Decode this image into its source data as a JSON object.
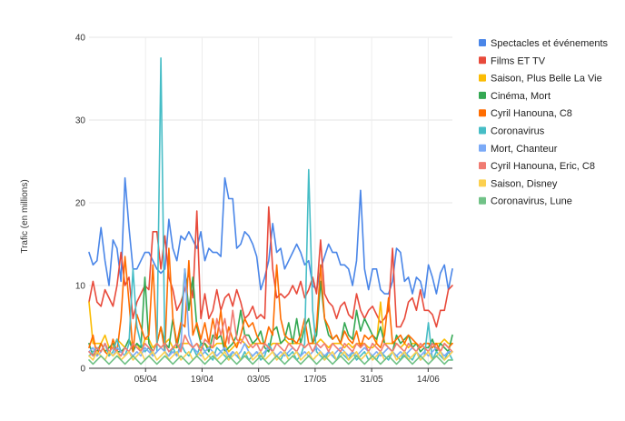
{
  "chart_data": {
    "type": "line",
    "title": "",
    "xlabel": "",
    "ylabel": "Trafic (en millions)",
    "ylim": [
      0,
      40
    ],
    "y_ticks": [
      0,
      10,
      20,
      30,
      40
    ],
    "x_start": "2020-03-22",
    "x_end": "2020-06-20",
    "x_ticks": [
      {
        "date": "2020-04-05",
        "label": "05/04"
      },
      {
        "date": "2020-04-19",
        "label": "19/04"
      },
      {
        "date": "2020-05-03",
        "label": "03/05"
      },
      {
        "date": "2020-05-17",
        "label": "17/05"
      },
      {
        "date": "2020-05-31",
        "label": "31/05"
      },
      {
        "date": "2020-06-14",
        "label": "14/06"
      }
    ],
    "grid": "horizontal",
    "legend": "right",
    "series": [
      {
        "name": "Spectacles et événements",
        "color": "#4a86e8",
        "values": [
          14,
          12.5,
          13,
          17,
          13,
          10,
          15.5,
          14.5,
          10.5,
          23,
          17,
          12,
          12,
          13,
          14,
          14,
          13,
          12,
          11.5,
          12,
          18,
          14.5,
          13,
          16,
          15.5,
          16.5,
          15.5,
          14.5,
          16.5,
          13,
          14.5,
          14,
          14,
          13.5,
          23,
          20.5,
          20.5,
          14.5,
          15,
          16.5,
          16,
          15,
          13.5,
          9.5,
          11,
          13,
          17.5,
          14,
          14.5,
          12,
          13,
          14,
          15,
          14,
          12.5,
          13,
          10,
          9.5,
          12,
          13.5,
          15,
          14,
          14,
          12.5,
          12.5,
          12,
          10,
          13,
          21.5,
          12,
          9.5,
          12,
          12,
          9.5,
          9,
          9,
          10.5,
          14.5,
          14,
          10.5,
          11,
          9,
          11,
          10.5,
          8.5,
          12.5,
          11,
          9,
          11.5,
          12.5,
          9.5,
          12
        ]
      },
      {
        "name": "Films ET TV",
        "color": "#e84a3b",
        "values": [
          8,
          10.5,
          8,
          7.5,
          9.5,
          8.5,
          7.5,
          10,
          14,
          10,
          11,
          6,
          8,
          9,
          10,
          9.5,
          16.5,
          16.5,
          12,
          16,
          11,
          9.5,
          7,
          8,
          9.5,
          11.5,
          8.5,
          19,
          6,
          9,
          6,
          7,
          9.5,
          7,
          8.5,
          9,
          7.5,
          9.5,
          8,
          6,
          6.5,
          7.5,
          6,
          6.5,
          6,
          19.5,
          12,
          8.5,
          9,
          8.5,
          9,
          10,
          9,
          10.5,
          8.5,
          9.5,
          11,
          9,
          15.5,
          9,
          8,
          7.5,
          6,
          7.5,
          8,
          6.5,
          6,
          9,
          7,
          6,
          7,
          7.5,
          6.5,
          5.5,
          6,
          7,
          14.5,
          5,
          5,
          6,
          8,
          8.5,
          7,
          9.5,
          7,
          7,
          6.5,
          5,
          7,
          7,
          9.5,
          10
        ]
      },
      {
        "name": "Saison, Plus Belle La Vie",
        "color": "#fbbc04",
        "values": [
          8,
          3,
          3,
          3,
          4,
          2.5,
          2.5,
          3.5,
          3,
          2.5,
          3.5,
          2.5,
          3,
          2,
          3.5,
          3.5,
          2.5,
          3,
          2.5,
          3,
          3.5,
          2.5,
          2.5,
          3,
          3,
          3,
          2.5,
          3,
          2.5,
          3,
          2.5,
          2.5,
          3,
          3,
          3,
          2,
          2.5,
          3,
          3.5,
          3,
          2.5,
          3,
          3,
          3,
          3,
          2.5,
          3,
          3,
          3,
          3.5,
          3,
          3,
          3,
          3,
          2.5,
          3,
          3,
          3,
          3.5,
          3,
          2.5,
          3,
          3,
          3,
          2.5,
          3,
          2.5,
          3,
          3,
          3,
          2.5,
          2.5,
          3,
          8,
          3,
          3,
          3,
          3,
          2.5,
          3,
          2.5,
          3,
          3,
          2.5,
          3,
          3,
          3,
          3,
          3,
          3.5,
          3,
          3
        ]
      },
      {
        "name": "Cinéma, Mort",
        "color": "#34a853",
        "values": [
          3,
          1.5,
          2,
          3,
          2,
          2.5,
          3,
          2,
          2,
          2.5,
          3.5,
          2,
          3,
          2.5,
          11,
          3,
          2,
          3,
          5,
          3,
          2.5,
          6,
          2.5,
          5,
          12,
          7,
          11,
          5,
          3,
          3,
          2,
          4,
          3.5,
          4,
          2,
          2.5,
          3,
          4,
          7,
          4,
          4,
          3,
          3.5,
          4.5,
          2.5,
          2,
          4.5,
          5,
          3,
          3.5,
          5.5,
          3,
          6,
          3,
          5,
          6,
          3,
          4,
          10.5,
          6,
          4,
          3.5,
          4,
          3,
          5.5,
          4,
          3.5,
          7,
          4.5,
          6,
          5,
          4,
          3.5,
          5,
          3,
          2.5,
          2,
          4,
          3,
          3.5,
          4,
          2.5,
          3,
          2,
          2.5,
          2.5,
          3.5,
          2,
          3,
          2.5,
          2,
          4
        ]
      },
      {
        "name": "Cyril Hanouna, C8",
        "color": "#ff6d01",
        "values": [
          2.5,
          4,
          1.5,
          3,
          2,
          1.5,
          3.5,
          2,
          6,
          13.5,
          8,
          2,
          6.5,
          5,
          3.5,
          4,
          12.5,
          3,
          5,
          2,
          14.5,
          6,
          3,
          5.5,
          5,
          13,
          4,
          5.5,
          3.5,
          5.5,
          3,
          6,
          3.5,
          7,
          2.5,
          5,
          3.5,
          2.5,
          4,
          6,
          5,
          5.5,
          4,
          3,
          3,
          5,
          4,
          12.5,
          6,
          4,
          3.5,
          3.5,
          3,
          4,
          6,
          3,
          3,
          5,
          12.5,
          6,
          5,
          3.5,
          4,
          3,
          4.5,
          3.5,
          3,
          4.5,
          2.5,
          4,
          3.5,
          4,
          3,
          2.5,
          4,
          8.5,
          3,
          3.5,
          4,
          3,
          4,
          3.5,
          3,
          2.5,
          3,
          3,
          2.5,
          3,
          2,
          3,
          2.5,
          3
        ]
      },
      {
        "name": "Coronavirus",
        "color": "#46bdc6",
        "values": [
          1.5,
          2,
          2.5,
          2,
          3,
          1.5,
          2,
          3.5,
          2,
          1.5,
          3,
          12,
          5,
          3,
          2,
          2.5,
          1.5,
          2,
          37.5,
          2,
          1.5,
          2.5,
          1.5,
          3,
          2,
          1.5,
          2.5,
          1.5,
          3,
          2,
          1.5,
          1,
          2.5,
          2,
          1.5,
          1,
          2,
          1.5,
          1,
          2,
          1,
          1.5,
          2,
          1,
          1.5,
          3,
          2,
          1.5,
          1,
          2,
          1.5,
          2,
          1,
          1.5,
          3,
          24,
          7,
          2,
          1.5,
          1,
          2,
          1.5,
          1,
          2,
          1.5,
          1,
          2,
          1,
          1.5,
          2,
          1,
          1.5,
          1,
          2,
          1.5,
          1,
          2,
          1.5,
          1,
          2,
          1.5,
          1,
          2,
          1,
          1.5,
          5.5,
          1,
          2,
          1.5,
          1,
          2,
          1
        ]
      },
      {
        "name": "Mort, Chanteur",
        "color": "#7baaf7",
        "values": [
          2,
          2.5,
          1.5,
          2,
          3,
          2,
          1.5,
          2.5,
          2,
          1.5,
          2,
          1.5,
          2,
          1.5,
          2.5,
          2,
          1.5,
          2,
          2.5,
          2,
          1.5,
          2,
          1.5,
          2.5,
          12,
          4,
          2.5,
          2,
          1.5,
          2,
          2.5,
          2,
          1.5,
          2,
          2.5,
          1.5,
          2,
          1.5,
          2,
          3,
          2,
          1.5,
          2,
          1.5,
          2,
          2.5,
          2,
          1.5,
          2,
          1.5,
          2,
          2.5,
          2,
          1.5,
          2,
          1.5,
          2,
          2.5,
          2,
          1.5,
          2,
          1.5,
          2,
          2.5,
          2,
          1.5,
          2,
          1.5,
          2,
          2.5,
          2,
          1.5,
          2,
          1.5,
          2,
          2.5,
          2,
          1.5,
          2,
          1.5,
          2,
          2.5,
          2,
          1.5,
          2,
          1.5,
          2,
          2.5,
          2,
          1.5,
          2,
          2
        ]
      },
      {
        "name": "Cyril Hanouna, Eric, C8",
        "color": "#f07b72",
        "values": [
          2,
          1.5,
          2.5,
          2,
          3,
          2,
          2.5,
          2,
          1.5,
          2.5,
          2,
          3,
          2.5,
          2,
          3,
          2.5,
          2,
          3,
          2.5,
          3,
          2,
          2.5,
          3,
          2,
          4,
          3,
          2.5,
          3,
          2,
          3.5,
          3,
          2.5,
          6,
          4,
          6,
          3,
          7,
          3.5,
          3,
          4,
          3,
          2.5,
          3,
          2,
          3,
          2.5,
          2,
          3,
          2.5,
          2,
          3,
          2.5,
          2,
          3,
          2.5,
          3,
          2,
          3,
          2.5,
          3,
          2,
          3,
          2.5,
          2,
          3,
          2.5,
          2,
          3,
          2.5,
          3,
          2,
          3,
          2.5,
          2,
          3,
          2.5,
          2,
          3,
          2.5,
          2,
          3,
          2.5,
          2,
          3,
          2.5,
          2,
          3,
          2.5,
          2,
          3,
          2.5,
          2
        ]
      },
      {
        "name": "Saison, Disney",
        "color": "#fcd04f",
        "values": [
          1.5,
          1,
          2,
          1.5,
          1,
          2,
          1.5,
          2,
          1,
          1.5,
          2,
          1,
          1.5,
          2,
          1,
          1.5,
          2,
          1,
          1.5,
          2,
          1,
          1.5,
          2,
          1,
          1.5,
          2,
          1,
          1.5,
          2,
          1,
          1.5,
          2,
          1,
          1.5,
          2,
          1,
          1.5,
          2,
          1,
          1.5,
          2,
          1,
          1.5,
          2,
          1,
          1.5,
          2,
          1,
          1.5,
          2,
          1,
          1.5,
          2,
          1,
          1.5,
          2,
          1,
          1.5,
          2,
          1,
          1.5,
          2,
          1,
          1.5,
          2,
          1,
          1.5,
          2,
          1,
          1.5,
          2,
          1,
          1.5,
          2,
          1,
          1.5,
          2,
          1,
          1.5,
          2,
          1,
          1.5,
          2,
          1,
          1.5,
          2,
          1,
          1.5,
          2,
          1,
          1.5,
          2
        ]
      },
      {
        "name": "Coronavirus, Lune",
        "color": "#71c287",
        "values": [
          1,
          0.5,
          1,
          1.5,
          1,
          0.5,
          1,
          1.5,
          1,
          0.5,
          1,
          1.5,
          1,
          0.5,
          1,
          1.5,
          1,
          0.5,
          1,
          1.5,
          1,
          0.5,
          1,
          1.5,
          1,
          0.5,
          1,
          1.5,
          1,
          0.5,
          1,
          1.5,
          1,
          0.5,
          1,
          1.5,
          1,
          0.5,
          1,
          1.5,
          1,
          0.5,
          1,
          1.5,
          1,
          0.5,
          1,
          1.5,
          1,
          0.5,
          1,
          1.5,
          1,
          0.5,
          1,
          1.5,
          1,
          0.5,
          1,
          1.5,
          1,
          0.5,
          1,
          1.5,
          1,
          0.5,
          1,
          1.5,
          1,
          0.5,
          1,
          1.5,
          1,
          0.5,
          1,
          1.5,
          1,
          0.5,
          1,
          1.5,
          1,
          0.5,
          1,
          1.5,
          1,
          0.5,
          1,
          1.5,
          1,
          0.5,
          1,
          1
        ]
      }
    ]
  }
}
